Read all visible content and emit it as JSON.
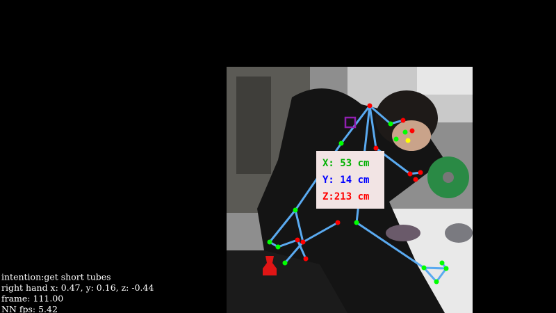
{
  "overlay": {
    "coords": {
      "x": "X: 53 cm",
      "y": "Y: 14 cm",
      "z": "Z:213 cm"
    }
  },
  "status": {
    "lines": [
      "intention:get short tubes",
      "right hand x: 0.47, y: 0.16, z: -0.44",
      "frame: 111.00",
      "NN fps: 5.42"
    ]
  }
}
